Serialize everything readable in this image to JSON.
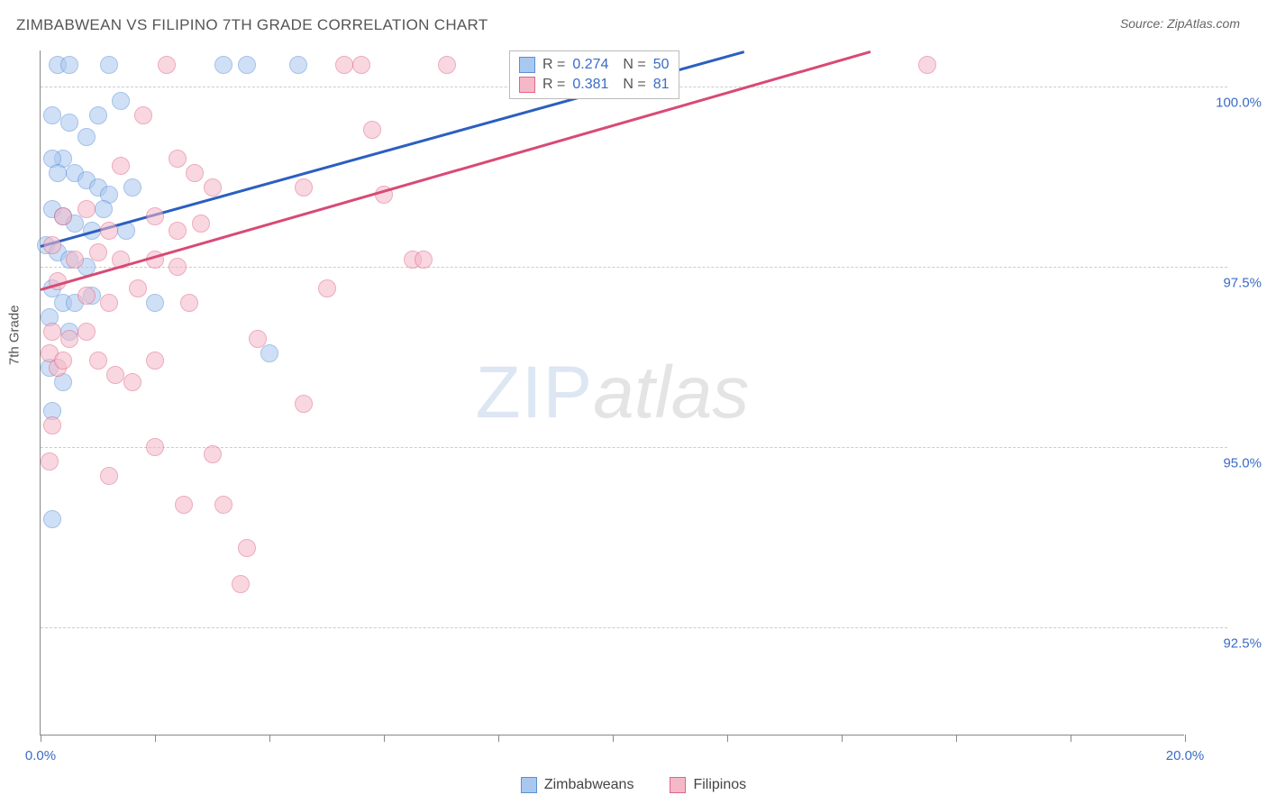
{
  "title": "ZIMBABWEAN VS FILIPINO 7TH GRADE CORRELATION CHART",
  "source_label": "Source: ZipAtlas.com",
  "y_axis_label": "7th Grade",
  "watermark": {
    "part1": "ZIP",
    "part2": "atlas"
  },
  "chart": {
    "type": "scatter",
    "xlim": [
      0,
      20
    ],
    "ylim": [
      91,
      100.5
    ],
    "x_ticks": [
      0,
      2,
      4,
      6,
      8,
      10,
      12,
      14,
      16,
      18,
      20
    ],
    "x_tick_labels": {
      "0": "0.0%",
      "20": "20.0%"
    },
    "y_ticks": [
      92.5,
      95.0,
      97.5,
      100.0
    ],
    "y_tick_labels": [
      "92.5%",
      "95.0%",
      "97.5%",
      "100.0%"
    ],
    "background_color": "#ffffff",
    "grid_color": "#cccccc",
    "axis_color": "#888888",
    "tick_label_color": "#3b6bc7",
    "point_radius": 10,
    "point_opacity": 0.55,
    "series": [
      {
        "name": "Zimbabweans",
        "color_fill": "#a8c8f0",
        "color_stroke": "#5b8fd6",
        "R": "0.274",
        "N": "50",
        "trend": {
          "x1": 0,
          "y1": 97.8,
          "x2": 12.3,
          "y2": 100.5,
          "color": "#2b5fc0"
        },
        "points": [
          [
            0.3,
            100.3
          ],
          [
            0.5,
            100.3
          ],
          [
            1.2,
            100.3
          ],
          [
            3.2,
            100.3
          ],
          [
            3.6,
            100.3
          ],
          [
            4.5,
            100.3
          ],
          [
            0.2,
            99.6
          ],
          [
            0.5,
            99.5
          ],
          [
            0.4,
            99.0
          ],
          [
            0.8,
            99.3
          ],
          [
            1.0,
            99.6
          ],
          [
            1.4,
            99.8
          ],
          [
            0.2,
            99.0
          ],
          [
            0.3,
            98.8
          ],
          [
            0.6,
            98.8
          ],
          [
            0.8,
            98.7
          ],
          [
            1.0,
            98.6
          ],
          [
            1.2,
            98.5
          ],
          [
            1.6,
            98.6
          ],
          [
            0.2,
            98.3
          ],
          [
            0.4,
            98.2
          ],
          [
            0.6,
            98.1
          ],
          [
            0.9,
            98.0
          ],
          [
            1.1,
            98.3
          ],
          [
            1.5,
            98.0
          ],
          [
            0.1,
            97.8
          ],
          [
            0.3,
            97.7
          ],
          [
            0.5,
            97.6
          ],
          [
            0.8,
            97.5
          ],
          [
            0.2,
            97.2
          ],
          [
            0.4,
            97.0
          ],
          [
            0.6,
            97.0
          ],
          [
            0.9,
            97.1
          ],
          [
            2.0,
            97.0
          ],
          [
            0.15,
            96.8
          ],
          [
            0.5,
            96.6
          ],
          [
            4.0,
            96.3
          ],
          [
            0.15,
            96.1
          ],
          [
            0.4,
            95.9
          ],
          [
            0.2,
            95.5
          ],
          [
            0.2,
            94.0
          ]
        ]
      },
      {
        "name": "Filipinos",
        "color_fill": "#f5b8c8",
        "color_stroke": "#e06688",
        "R": "0.381",
        "N": "81",
        "trend": {
          "x1": 0,
          "y1": 97.2,
          "x2": 14.5,
          "y2": 100.5,
          "color": "#d84a75"
        },
        "points": [
          [
            2.2,
            100.3
          ],
          [
            5.3,
            100.3
          ],
          [
            5.6,
            100.3
          ],
          [
            7.1,
            100.3
          ],
          [
            10.7,
            100.3
          ],
          [
            10.9,
            100.3
          ],
          [
            11.0,
            100.3
          ],
          [
            15.5,
            100.3
          ],
          [
            1.8,
            99.6
          ],
          [
            5.8,
            99.4
          ],
          [
            1.4,
            98.9
          ],
          [
            2.4,
            99.0
          ],
          [
            2.7,
            98.8
          ],
          [
            3.0,
            98.6
          ],
          [
            4.6,
            98.6
          ],
          [
            6.0,
            98.5
          ],
          [
            0.4,
            98.2
          ],
          [
            0.8,
            98.3
          ],
          [
            1.2,
            98.0
          ],
          [
            2.0,
            98.2
          ],
          [
            2.4,
            98.0
          ],
          [
            2.8,
            98.1
          ],
          [
            0.2,
            97.8
          ],
          [
            0.6,
            97.6
          ],
          [
            1.0,
            97.7
          ],
          [
            1.4,
            97.6
          ],
          [
            2.0,
            97.6
          ],
          [
            2.4,
            97.5
          ],
          [
            6.5,
            97.6
          ],
          [
            6.7,
            97.6
          ],
          [
            0.3,
            97.3
          ],
          [
            0.8,
            97.1
          ],
          [
            1.2,
            97.0
          ],
          [
            1.7,
            97.2
          ],
          [
            2.6,
            97.0
          ],
          [
            5.0,
            97.2
          ],
          [
            0.2,
            96.6
          ],
          [
            0.5,
            96.5
          ],
          [
            0.8,
            96.6
          ],
          [
            3.8,
            96.5
          ],
          [
            0.15,
            96.3
          ],
          [
            0.3,
            96.1
          ],
          [
            0.4,
            96.2
          ],
          [
            1.0,
            96.2
          ],
          [
            1.3,
            96.0
          ],
          [
            1.6,
            95.9
          ],
          [
            2.0,
            96.2
          ],
          [
            4.6,
            95.6
          ],
          [
            0.2,
            95.3
          ],
          [
            2.0,
            95.0
          ],
          [
            3.0,
            94.9
          ],
          [
            0.15,
            94.8
          ],
          [
            1.2,
            94.6
          ],
          [
            2.5,
            94.2
          ],
          [
            3.2,
            94.2
          ],
          [
            3.6,
            93.6
          ],
          [
            3.5,
            93.1
          ]
        ]
      }
    ]
  },
  "stats_box": {
    "R_label": "R =",
    "N_label": "N ="
  },
  "bottom_legend": [
    "Zimbabweans",
    "Filipinos"
  ]
}
